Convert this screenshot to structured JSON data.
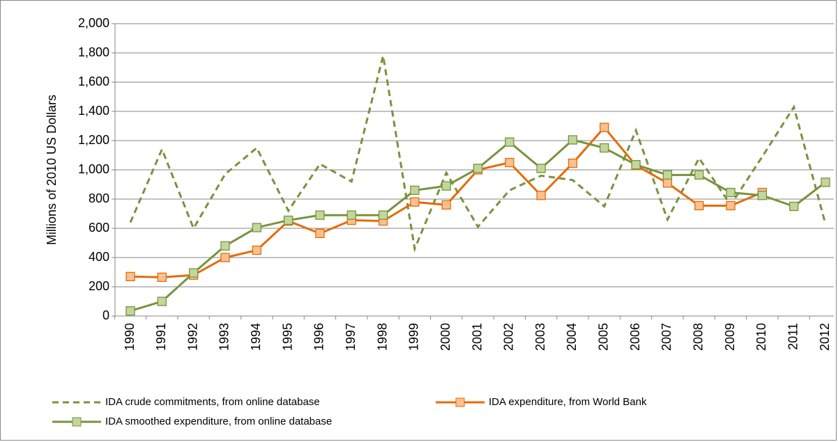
{
  "chart_data": {
    "type": "line",
    "y_label": "Millions of 2010 US Dollars",
    "categories": [
      "1990",
      "1991",
      "1992",
      "1993",
      "1994",
      "1995",
      "1996",
      "1997",
      "1998",
      "1999",
      "2000",
      "2001",
      "2002",
      "2003",
      "2004",
      "2005",
      "2006",
      "2007",
      "2008",
      "2009",
      "2010",
      "2011",
      "2012"
    ],
    "series": [
      {
        "name": "IDA crude commitments, from online database",
        "color": "#77933c",
        "dashed": true,
        "markers": false,
        "values": [
          640,
          1140,
          600,
          970,
          1150,
          720,
          1040,
          920,
          1780,
          460,
          980,
          610,
          860,
          960,
          930,
          750,
          1270,
          660,
          1080,
          760,
          1090,
          1430,
          630
        ]
      },
      {
        "name": "IDA expenditure, from World Bank",
        "color": "#e36c09",
        "marker_fill": "#fac090",
        "dashed": false,
        "markers": true,
        "values": [
          270,
          265,
          280,
          400,
          450,
          650,
          565,
          655,
          650,
          780,
          760,
          1000,
          1050,
          825,
          1045,
          1290,
          1030,
          910,
          755,
          755,
          845,
          null,
          null
        ]
      },
      {
        "name": "IDA smoothed expenditure, from online database",
        "color": "#77933c",
        "marker_fill": "#c3d69b",
        "dashed": false,
        "markers": true,
        "values": [
          35,
          100,
          295,
          480,
          605,
          655,
          690,
          690,
          690,
          860,
          890,
          1010,
          1190,
          1010,
          1205,
          1150,
          1035,
          965,
          965,
          845,
          825,
          750,
          915
        ]
      }
    ],
    "ylim": [
      0,
      2000
    ],
    "yticks": [
      0,
      200,
      400,
      600,
      800,
      {
        "value": 1000,
        "label": "1,000"
      },
      {
        "value": 1200,
        "label": "1,200"
      },
      {
        "value": 1400,
        "label": "1,400"
      },
      {
        "value": 1600,
        "label": "1,600"
      },
      {
        "value": 1800,
        "label": "1,800"
      },
      {
        "value": 2000,
        "label": "2,000"
      }
    ],
    "grid": true,
    "legend": "bottom"
  }
}
